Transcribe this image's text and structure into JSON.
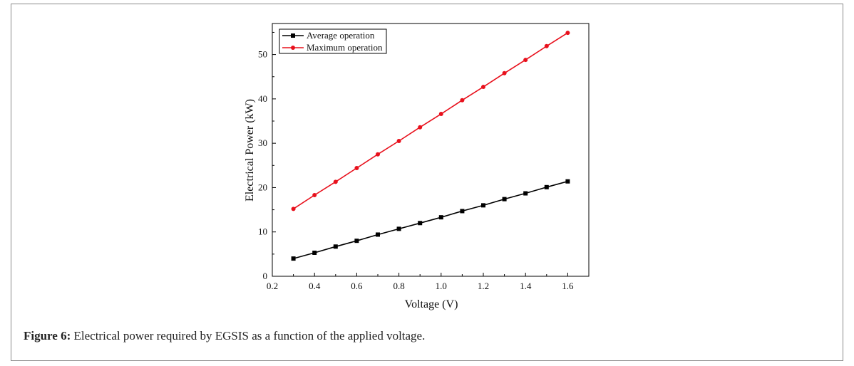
{
  "caption": {
    "label": "Figure 6:",
    "text": " Electrical power required by EGSIS as a function of the applied voltage."
  },
  "chart_data": {
    "type": "line",
    "xlabel": "Voltage (V)",
    "ylabel": "Electrical Power (kW)",
    "xlim": [
      0.2,
      1.7
    ],
    "ylim": [
      0,
      57
    ],
    "xticks": [
      0.2,
      0.4,
      0.6,
      0.8,
      1.0,
      1.2,
      1.4,
      1.6
    ],
    "xtick_labels": [
      "0.2",
      "0.4",
      "0.6",
      "0.8",
      "1.0",
      "1.2",
      "1.4",
      "1.6"
    ],
    "yticks": [
      0,
      10,
      20,
      30,
      40,
      50
    ],
    "ytick_labels": [
      "0",
      "10",
      "20",
      "30",
      "40",
      "50"
    ],
    "legend_position": "top-left",
    "x": [
      0.3,
      0.4,
      0.5,
      0.6,
      0.7,
      0.8,
      0.9,
      1.0,
      1.1,
      1.2,
      1.3,
      1.4,
      1.5,
      1.6
    ],
    "series": [
      {
        "name": "Average operation",
        "color": "#000000",
        "marker": "square",
        "values": [
          4.0,
          5.3,
          6.7,
          8.0,
          9.4,
          10.7,
          12.0,
          13.3,
          14.7,
          16.0,
          17.4,
          18.7,
          20.1,
          21.4
        ]
      },
      {
        "name": "Maximum operation",
        "color": "#e8101c",
        "marker": "circle",
        "values": [
          15.2,
          18.3,
          21.3,
          24.4,
          27.5,
          30.5,
          33.6,
          36.6,
          39.7,
          42.7,
          45.8,
          48.8,
          51.9,
          54.9
        ]
      }
    ]
  }
}
